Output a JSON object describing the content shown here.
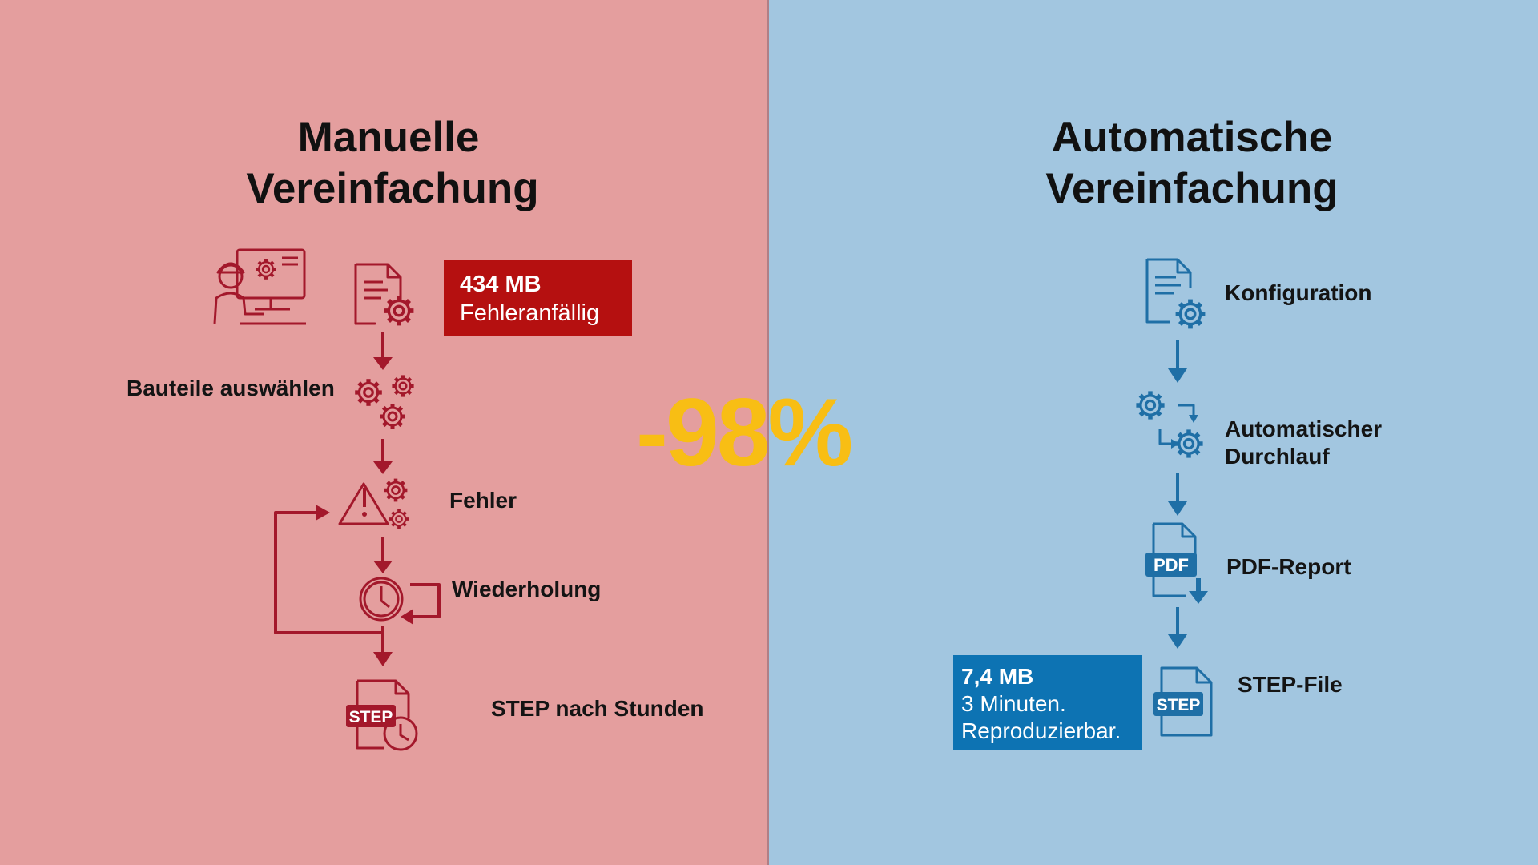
{
  "left": {
    "title_line1": "Manuelle",
    "title_line2": "Vereinfachung",
    "badge_size": "434 MB",
    "badge_text": "Fehleranfällig",
    "steps": {
      "select": "Bauteile auswählen",
      "error": "Fehler",
      "repeat": "Wiederholung",
      "step": "STEP nach Stunden"
    },
    "color": "#a3182b"
  },
  "right": {
    "title_line1": "Automatische",
    "title_line2": "Vereinfachung",
    "steps": {
      "config": "Konfiguration",
      "auto_line1": "Automatischer",
      "auto_line2": "Durchlauf",
      "pdf": "PDF-Report",
      "step": "STEP-File"
    },
    "badge_size": "7,4 MB",
    "badge_time": "3 Minuten.",
    "badge_text": "Reproduzierbar.",
    "color": "#1f6fa6"
  },
  "center": {
    "percent": "-98%",
    "color": "#f8be14"
  },
  "icons": {
    "pdf_text": "PDF",
    "step_text": "STEP"
  }
}
